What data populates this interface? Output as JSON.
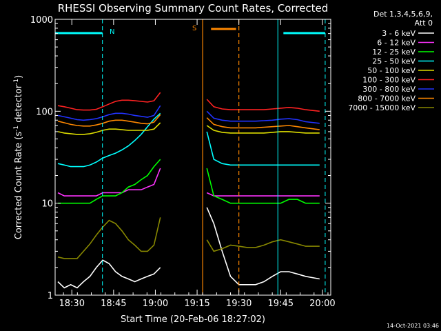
{
  "chart_data": {
    "type": "line",
    "title": "RHESSI Observing Summary Count Rates, Corrected",
    "xlabel": "Start Time (20-Feb-06 18:27:02)",
    "ylabel": "Corrected Count Rate (s^-1 detector^-1)",
    "ylabel_main": "Corrected Count Rate (s",
    "ylabel_sup1": "-1",
    "ylabel_mid": " detector",
    "ylabel_sup2": "-1",
    "ylabel_end": ")",
    "yscale": "log",
    "ylim": [
      1,
      1000
    ],
    "xlim_minutes": [
      -3,
      96
    ],
    "x_ticks": [
      {
        "min": 3,
        "label": "18:30"
      },
      {
        "min": 18,
        "label": "18:45"
      },
      {
        "min": 33,
        "label": "19:00"
      },
      {
        "min": 48,
        "label": "19:15"
      },
      {
        "min": 63,
        "label": "19:30"
      },
      {
        "min": 78,
        "label": "19:45"
      },
      {
        "min": 93,
        "label": "20:00"
      }
    ],
    "y_ticks": [
      {
        "value": 1,
        "label": "1"
      },
      {
        "value": 10,
        "label": "10"
      },
      {
        "value": 100,
        "label": "100"
      },
      {
        "value": 1000,
        "label": "1000"
      }
    ],
    "legend_header": [
      "Det 1,3,4,5,6,9,",
      "Att 0"
    ],
    "series": [
      {
        "name": "3 - 6 keV",
        "color": "#ffffff",
        "values": [
          1.4,
          1.2,
          1.3,
          1.2,
          1.4,
          1.6,
          2.0,
          2.4,
          2.2,
          1.8,
          1.6,
          1.5,
          1.4,
          1.5,
          1.6,
          1.7,
          2.0,
          9.0,
          6.0,
          3.0,
          1.6,
          1.3,
          1.3,
          1.3,
          1.4,
          1.6,
          1.8,
          1.8,
          1.7,
          1.6,
          1.5
        ]
      },
      {
        "name": "6 - 12 keV",
        "color": "#ff33ff",
        "values": [
          13,
          12,
          12,
          12,
          12,
          12,
          12,
          13,
          13,
          13,
          13,
          14,
          14,
          14,
          15,
          16,
          24,
          13,
          12,
          12,
          12,
          12,
          12,
          12,
          12,
          12,
          12,
          12,
          12,
          12,
          12
        ]
      },
      {
        "name": "12 - 25 keV",
        "color": "#00ff00",
        "values": [
          10,
          10,
          10,
          10,
          10,
          10,
          11,
          12,
          12,
          12,
          13,
          15,
          16,
          18,
          20,
          25,
          30,
          24,
          12,
          11,
          10,
          10,
          10,
          10,
          10,
          10,
          10,
          11,
          11,
          10,
          10
        ]
      },
      {
        "name": "25 - 50 keV",
        "color": "#00ffff",
        "values": [
          27,
          26,
          25,
          25,
          25,
          26,
          28,
          31,
          33,
          35,
          38,
          42,
          48,
          56,
          68,
          82,
          95,
          60,
          30,
          27,
          26,
          26,
          26,
          26,
          26,
          26,
          26,
          26,
          26,
          26,
          26
        ]
      },
      {
        "name": "50 - 100 keV",
        "color": "#dddd00",
        "values": [
          60,
          58,
          57,
          56,
          56,
          57,
          59,
          62,
          64,
          64,
          63,
          62,
          62,
          62,
          62,
          64,
          75,
          70,
          62,
          59,
          58,
          58,
          58,
          58,
          58,
          59,
          60,
          60,
          59,
          58,
          58
        ]
      },
      {
        "name": "100 - 300 keV",
        "color": "#ff2222",
        "values": [
          115,
          112,
          108,
          104,
          103,
          103,
          105,
          112,
          120,
          128,
          132,
          132,
          130,
          128,
          126,
          130,
          160,
          135,
          112,
          106,
          104,
          104,
          104,
          104,
          104,
          106,
          108,
          110,
          108,
          104,
          100
        ]
      },
      {
        "name": "300 - 800 keV",
        "color": "#2233ff",
        "values": [
          90,
          87,
          84,
          81,
          80,
          81,
          83,
          87,
          92,
          95,
          95,
          93,
          90,
          88,
          86,
          90,
          115,
          100,
          84,
          80,
          78,
          78,
          78,
          78,
          79,
          80,
          82,
          83,
          81,
          77,
          74
        ]
      },
      {
        "name": "800 - 7000 keV",
        "color": "#ff8800",
        "values": [
          78,
          75,
          72,
          70,
          69,
          69,
          71,
          74,
          78,
          80,
          80,
          78,
          76,
          74,
          73,
          76,
          92,
          85,
          72,
          68,
          66,
          66,
          66,
          66,
          67,
          68,
          69,
          70,
          68,
          66,
          63
        ]
      },
      {
        "name": "7000 - 15000 keV",
        "color": "#888800",
        "values": [
          2.6,
          2.5,
          2.5,
          2.5,
          3.0,
          3.6,
          4.5,
          5.5,
          6.5,
          6.0,
          5.0,
          4.0,
          3.5,
          3.0,
          3.0,
          3.5,
          7.0,
          4.0,
          3.0,
          3.2,
          3.5,
          3.4,
          3.3,
          3.3,
          3.5,
          3.8,
          4.0,
          3.8,
          3.6,
          3.4,
          3.4
        ]
      }
    ],
    "series_time_minutes": [
      -2,
      0.3,
      2.6,
      4.9,
      7.2,
      9.5,
      11.8,
      14.1,
      16.4,
      18.7,
      21.0,
      23.3,
      25.6,
      27.9,
      30.2,
      32.5,
      34.8,
      51.5,
      54.0,
      57.0,
      60.0,
      63.0,
      66.0,
      69.0,
      72.0,
      75.0,
      78.0,
      81.0,
      84.0,
      87.0,
      92.0
    ],
    "gap_after_index": 16,
    "annotations": {
      "night_label": "N",
      "night_color": "#00ffff",
      "saa_label": "S",
      "saa_color": "#ff8800",
      "night_bars_minutes": [
        [
          -3,
          14
        ],
        [
          79,
          94
        ]
      ],
      "night_lines_solid_minutes": [
        -3,
        77
      ],
      "night_lines_dashed_minutes": [
        14,
        94
      ],
      "saa_bar_minutes": [
        53,
        62
      ],
      "saa_line_solid_minutes": 50,
      "saa_line_dashed_minutes": 63
    },
    "date_stamp": "14-Oct-2021 03:46"
  }
}
